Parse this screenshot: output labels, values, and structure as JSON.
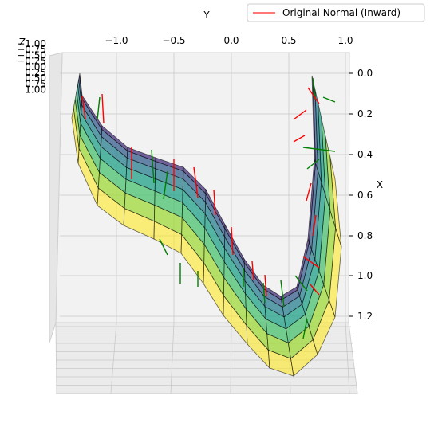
{
  "chart_data": {
    "type": "surface3d",
    "axes": {
      "y": {
        "label": "Y",
        "ticks": [
          "−1.0",
          "−0.5",
          "0.0",
          "0.5",
          "1.0"
        ],
        "range": [
          -1.0,
          1.0
        ]
      },
      "x": {
        "label": "X",
        "ticks": [
          "0.0",
          "0.2",
          "0.4",
          "0.6",
          "0.8",
          "1.0",
          "1.2"
        ],
        "range": [
          0.0,
          1.2
        ]
      },
      "z": {
        "label": "Z",
        "ticks": [
          "−1.00",
          "−0.75",
          "−0.50",
          "−0.25",
          "0.00",
          "0.25",
          "0.50",
          "0.75",
          "1.00"
        ],
        "range": [
          -1.0,
          1.0
        ]
      }
    },
    "legend": {
      "entries": [
        {
          "label": "Original Normal (Inward)",
          "color": "#ff4d4d"
        }
      ],
      "placement": "top-right"
    },
    "surface": {
      "colormap": "viridis",
      "shape": "U-shaped strip",
      "edge_color": "#000000"
    },
    "vectors": [
      {
        "name": "Original Normal (Inward)",
        "color": "#ff0000"
      },
      {
        "color": "#008000"
      }
    ],
    "grid": true
  }
}
